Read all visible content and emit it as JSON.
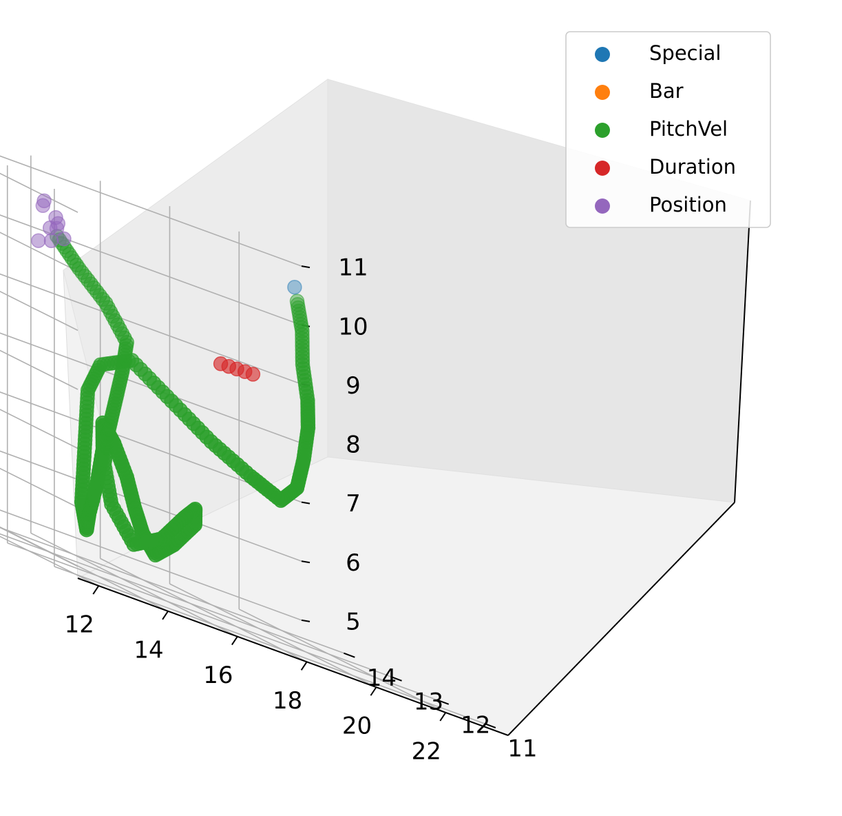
{
  "chart_data": {
    "type": "scatter",
    "projection": "3d",
    "title": "",
    "xlabel": "",
    "ylabel": "",
    "zlabel": "",
    "x_ticks": [
      "12",
      "14",
      "16",
      "18",
      "20",
      "22"
    ],
    "y_ticks": [
      "11",
      "12",
      "13",
      "14"
    ],
    "z_ticks": [
      "5",
      "6",
      "7",
      "8",
      "9",
      "10",
      "11"
    ],
    "grid": true,
    "legend_placement": "top-right",
    "series": [
      {
        "name": "Special",
        "color": "#1f77b4",
        "points": [
          [
            23.6,
            14.9,
            10.6
          ]
        ]
      },
      {
        "name": "Bar",
        "color": "#ff7f0e",
        "points": []
      },
      {
        "name": "PitchVel",
        "color": "#2ca02c",
        "path": [
          [
            23.4,
            14.7,
            10.4
          ],
          [
            22.6,
            14.0,
            10.0
          ],
          [
            21.8,
            13.4,
            9.5
          ],
          [
            21.0,
            12.7,
            9.0
          ],
          [
            20.2,
            12.1,
            8.6
          ],
          [
            19.4,
            11.6,
            8.1
          ],
          [
            18.8,
            11.3,
            7.6
          ],
          [
            18.2,
            11.2,
            7.3
          ],
          [
            17.6,
            11.4,
            7.5
          ],
          [
            17.0,
            11.8,
            7.8
          ],
          [
            16.4,
            12.2,
            8.2
          ],
          [
            15.8,
            12.6,
            8.6
          ],
          [
            15.3,
            12.9,
            8.3
          ],
          [
            14.8,
            12.8,
            7.8
          ],
          [
            14.2,
            12.4,
            7.2
          ],
          [
            13.6,
            12.0,
            6.6
          ],
          [
            13.0,
            11.6,
            6.0
          ],
          [
            12.6,
            11.2,
            5.6
          ],
          [
            12.4,
            11.0,
            5.9
          ],
          [
            12.5,
            10.9,
            6.5
          ],
          [
            12.8,
            11.0,
            7.1
          ],
          [
            13.2,
            11.3,
            7.5
          ],
          [
            13.8,
            11.5,
            7.2
          ],
          [
            14.3,
            11.6,
            6.7
          ],
          [
            14.8,
            11.8,
            6.2
          ],
          [
            15.3,
            12.0,
            5.8
          ],
          [
            15.8,
            12.1,
            5.5
          ],
          [
            16.2,
            12.0,
            5.8
          ],
          [
            16.4,
            11.7,
            6.3
          ],
          [
            16.0,
            11.4,
            6.6
          ],
          [
            15.4,
            11.2,
            6.4
          ],
          [
            14.9,
            11.3,
            5.9
          ],
          [
            14.5,
            11.6,
            5.6
          ],
          [
            14.4,
            12.0,
            6.1
          ],
          [
            14.6,
            12.3,
            6.7
          ],
          [
            15.0,
            12.5,
            7.3
          ],
          [
            15.6,
            12.8,
            7.8
          ],
          [
            16.2,
            13.1,
            8.3
          ],
          [
            16.6,
            13.3,
            8.8
          ],
          [
            16.4,
            13.6,
            9.3
          ],
          [
            15.9,
            13.8,
            9.7
          ],
          [
            15.4,
            13.9,
            10.1
          ]
        ]
      },
      {
        "name": "Duration",
        "color": "#d62728",
        "points": [
          [
            18.9,
            13.0,
            9.05
          ],
          [
            19.2,
            13.05,
            9.05
          ],
          [
            19.5,
            13.1,
            9.05
          ],
          [
            19.8,
            13.15,
            9.05
          ],
          [
            20.1,
            13.2,
            9.05
          ]
        ]
      },
      {
        "name": "Position",
        "color": "#9467bd",
        "points": [
          [
            15.2,
            13.9,
            10.2
          ],
          [
            15.5,
            14.0,
            10.4
          ],
          [
            15.7,
            14.1,
            10.3
          ],
          [
            15.4,
            14.2,
            10.5
          ],
          [
            15.1,
            13.8,
            10.0
          ],
          [
            15.6,
            13.9,
            10.1
          ],
          [
            15.3,
            14.1,
            10.6
          ],
          [
            15.8,
            14.2,
            10.2
          ],
          [
            15.0,
            14.0,
            9.9
          ]
        ]
      }
    ]
  }
}
